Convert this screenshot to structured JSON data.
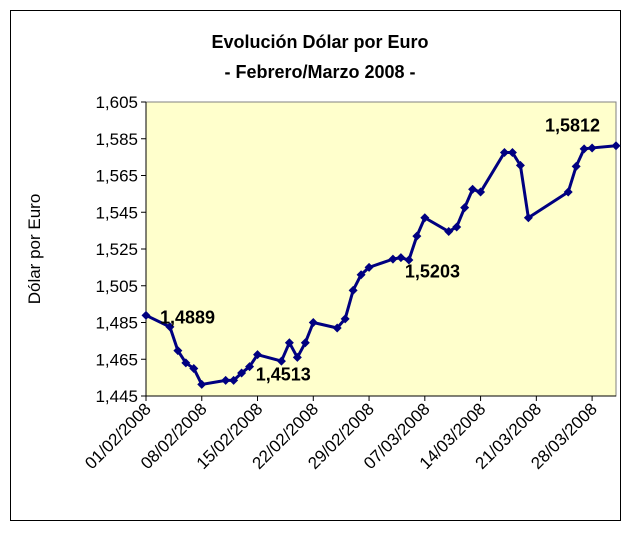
{
  "chart_data": {
    "type": "line",
    "title": [
      "Evolución Dólar por Euro",
      "- Febrero/Marzo 2008 -"
    ],
    "y_label": "Dólar por Euro",
    "x": [
      "01/02/2008",
      "04/02/2008",
      "05/02/2008",
      "06/02/2008",
      "07/02/2008",
      "08/02/2008",
      "11/02/2008",
      "12/02/2008",
      "13/02/2008",
      "14/02/2008",
      "15/02/2008",
      "18/02/2008",
      "19/02/2008",
      "20/02/2008",
      "21/02/2008",
      "22/02/2008",
      "25/02/2008",
      "26/02/2008",
      "27/02/2008",
      "28/02/2008",
      "29/02/2008",
      "03/03/2008",
      "04/03/2008",
      "05/03/2008",
      "06/03/2008",
      "07/03/2008",
      "10/03/2008",
      "11/03/2008",
      "12/03/2008",
      "13/03/2008",
      "14/03/2008",
      "17/03/2008",
      "18/03/2008",
      "19/03/2008",
      "20/03/2008",
      "25/03/2008",
      "26/03/2008",
      "27/03/2008",
      "28/03/2008",
      "31/03/2008"
    ],
    "series": [
      {
        "name": "Dólar por Euro",
        "color": "#000080",
        "values": [
          1.4889,
          1.4826,
          1.4697,
          1.463,
          1.46,
          1.4513,
          1.4535,
          1.4535,
          1.4575,
          1.461,
          1.4675,
          1.464,
          1.474,
          1.466,
          1.474,
          1.485,
          1.482,
          1.487,
          1.5025,
          1.511,
          1.515,
          1.5195,
          1.5203,
          1.519,
          1.532,
          1.542,
          1.5345,
          1.537,
          1.5475,
          1.5575,
          1.556,
          1.5775,
          1.5775,
          1.5705,
          1.542,
          1.556,
          1.57,
          1.5795,
          1.58,
          1.5812
        ],
        "value_labels": [
          "1,4889",
          null,
          null,
          null,
          null,
          "1,4513",
          null,
          null,
          null,
          null,
          null,
          null,
          null,
          null,
          null,
          null,
          null,
          null,
          null,
          null,
          null,
          null,
          "1,5203",
          null,
          null,
          null,
          null,
          null,
          null,
          null,
          null,
          null,
          null,
          null,
          null,
          null,
          null,
          null,
          null,
          "1,5812"
        ]
      }
    ],
    "xlim": [
      "01/02/2008",
      "31/03/2008"
    ],
    "xticks": [
      "01/02/2008",
      "08/02/2008",
      "15/02/2008",
      "22/02/2008",
      "29/02/2008",
      "07/03/2008",
      "14/03/2008",
      "21/03/2008",
      "28/03/2008"
    ],
    "ylim": [
      1.445,
      1.605
    ],
    "yticks": [
      {
        "value": 1.445,
        "label": "1,445"
      },
      {
        "value": 1.465,
        "label": "1,465"
      },
      {
        "value": 1.485,
        "label": "1,485"
      },
      {
        "value": 1.505,
        "label": "1,505"
      },
      {
        "value": 1.525,
        "label": "1,525"
      },
      {
        "value": 1.545,
        "label": "1,545"
      },
      {
        "value": 1.565,
        "label": "1,565"
      },
      {
        "value": 1.585,
        "label": "1,585"
      },
      {
        "value": 1.605,
        "label": "1,605"
      }
    ],
    "grid": false,
    "plot_background": "#FFFFCC"
  }
}
